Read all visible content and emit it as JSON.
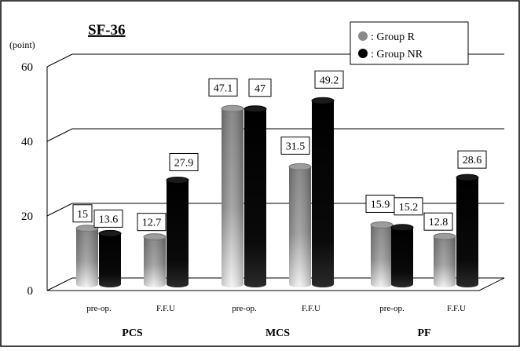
{
  "chart_data": {
    "type": "bar",
    "title": "SF-36",
    "ylabel": "(point)",
    "ylim": [
      0,
      60
    ],
    "yticks": [
      "0",
      "20",
      "40",
      "60"
    ],
    "groups": [
      {
        "name": "PCS",
        "subcategories": [
          "pre-op.",
          "F.F.U"
        ]
      },
      {
        "name": "MCS",
        "subcategories": [
          "pre-op.",
          "F.F.U"
        ]
      },
      {
        "name": "PF",
        "subcategories": [
          "pre-op.",
          "F.F.U"
        ]
      }
    ],
    "categories": [
      "PCS pre-op.",
      "PCS F.F.U",
      "MCS pre-op.",
      "MCS F.F.U",
      "PF pre-op.",
      "PF F.F.U"
    ],
    "series": [
      {
        "name": ": Group R",
        "color": "#8a8a8a",
        "values": [
          15,
          12.7,
          47.1,
          31.5,
          15.9,
          12.8
        ],
        "labels": [
          "15",
          "12.7",
          "47.1",
          "31.5",
          "15.9",
          "12.8"
        ]
      },
      {
        "name": ": Group NR",
        "color": "#000000",
        "values": [
          13.6,
          27.9,
          47,
          49.2,
          15.2,
          28.6
        ],
        "labels": [
          "13.6",
          "27.9",
          "47",
          "49.2",
          "15.2",
          "28.6"
        ]
      }
    ],
    "grid": true,
    "legend_position": "top-right",
    "style": "3d-cylinder"
  }
}
